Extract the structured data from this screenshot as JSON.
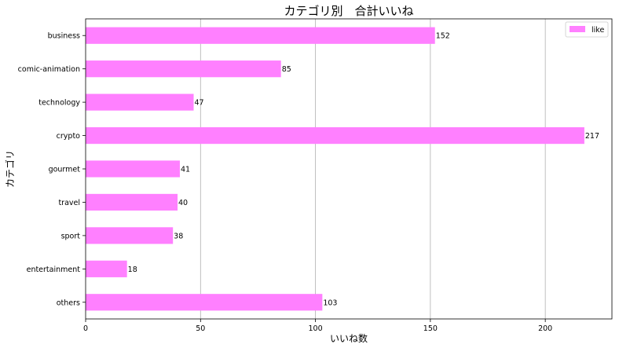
{
  "chart_data": {
    "type": "bar",
    "orientation": "horizontal",
    "title": "カテゴリ別　合計いいね",
    "xlabel": "いいね数",
    "ylabel": "カテゴリ",
    "categories": [
      "business",
      "comic-animation",
      "technology",
      "crypto",
      "gourmet",
      "travel",
      "sport",
      "entertainment",
      "others"
    ],
    "series": [
      {
        "name": "like",
        "values": [
          152,
          85,
          47,
          217,
          41,
          40,
          38,
          18,
          103
        ]
      }
    ],
    "xlim": [
      0,
      229
    ],
    "xticks": [
      0,
      50,
      100,
      150,
      200
    ],
    "grid": "vertical",
    "legend_position": "top-right",
    "bar_color": "#ff80ff",
    "show_data_labels": true
  }
}
